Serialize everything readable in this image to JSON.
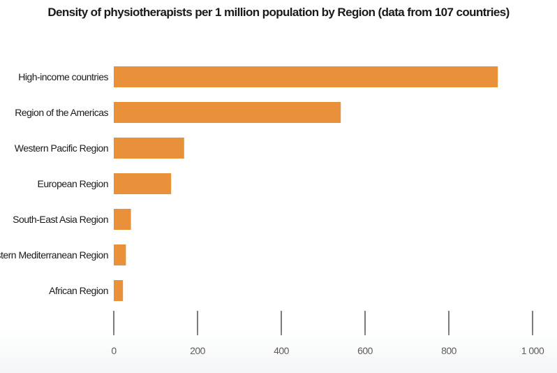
{
  "chart_data": {
    "type": "bar",
    "orientation": "horizontal",
    "title": "Density of physiotherapists per 1 million population by Region (data from 107 countries)",
    "categories": [
      "High-income countries",
      "Region of the Americas",
      "Western Pacific Region",
      "European Region",
      "South-East Asia Region",
      "Eastern Mediterranean Region",
      "African Region"
    ],
    "values": [
      917,
      542,
      168,
      137,
      41,
      29,
      22
    ],
    "xlim": [
      0,
      1000
    ],
    "xticks": [
      0,
      200,
      400,
      600,
      800,
      1000
    ],
    "xtick_labels": [
      "0",
      "200",
      "400",
      "600",
      "800",
      "1 000"
    ],
    "xlabel": "",
    "ylabel": "",
    "grid": false,
    "legend": "none",
    "bar_color": "#e8903a",
    "text_color": "#1a1a1a",
    "axis_color": "#333333"
  }
}
